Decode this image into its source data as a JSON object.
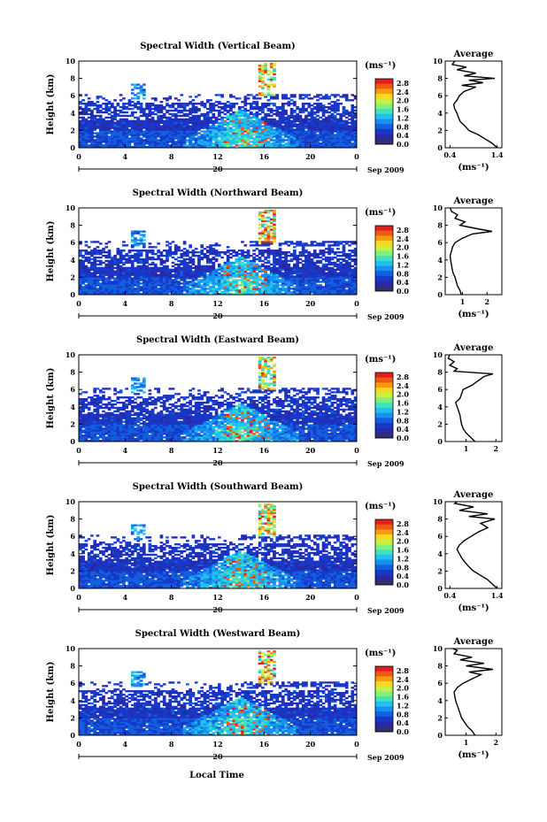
{
  "figure": {
    "xlabel": "Local Time",
    "date_label": "20",
    "month_label": "Sep 2009",
    "ylabel": "Height (km)",
    "unit_label": "(ms⁻¹)"
  },
  "colorbar": {
    "ticks": [
      "2.8",
      "2.4",
      "2.0",
      "1.6",
      "1.2",
      "0.8",
      "0.4",
      "0.0"
    ],
    "colors": [
      "#e02020",
      "#f05a10",
      "#f89a10",
      "#f8d820",
      "#c8f040",
      "#80f080",
      "#40e0c0",
      "#20c0f0",
      "#1890f0",
      "#1060e0",
      "#1838c8",
      "#2828a8",
      "#303070"
    ]
  },
  "chart_data": [
    {
      "type": "heatmap",
      "title": "Spectral Width (Vertical Beam)",
      "xlabel": "Local Time",
      "ylabel": "Height (km)",
      "x_ticks": [
        "0",
        "4",
        "8",
        "12",
        "16",
        "20",
        "0"
      ],
      "y_ticks": [
        "10",
        "8",
        "6",
        "4",
        "2",
        "0"
      ],
      "xlim": [
        0,
        24
      ],
      "ylim": [
        0,
        10
      ],
      "color_scale": [
        0,
        3.0
      ],
      "colorbar_unit": "(ms⁻¹)",
      "average": {
        "title": "Average",
        "xlabel": "(ms⁻¹)",
        "xlim": [
          0.3,
          1.5
        ],
        "x_ticks": [
          "0.4",
          "1.4"
        ],
        "y_ticks": [
          "10",
          "8",
          "6",
          "4",
          "2",
          "0"
        ],
        "profile": [
          [
            0.0,
            1.4
          ],
          [
            0.5,
            1.3
          ],
          [
            1.0,
            1.15
          ],
          [
            1.5,
            1.0
          ],
          [
            2.0,
            0.8
          ],
          [
            2.5,
            0.72
          ],
          [
            3.0,
            0.62
          ],
          [
            3.5,
            0.58
          ],
          [
            4.0,
            0.55
          ],
          [
            4.5,
            0.5
          ],
          [
            5.0,
            0.48
          ],
          [
            5.5,
            0.55
          ],
          [
            6.0,
            0.6
          ],
          [
            6.5,
            0.7
          ],
          [
            7.0,
            0.95
          ],
          [
            7.2,
            0.65
          ],
          [
            7.5,
            1.1
          ],
          [
            7.8,
            0.8
          ],
          [
            8.0,
            1.35
          ],
          [
            8.3,
            0.7
          ],
          [
            8.6,
            0.95
          ],
          [
            9.0,
            0.55
          ],
          [
            9.3,
            0.75
          ],
          [
            9.6,
            0.45
          ],
          [
            10.0,
            0.5
          ]
        ]
      }
    },
    {
      "type": "heatmap",
      "title": "Spectral Width (Northward Beam)",
      "xlabel": "Local Time",
      "ylabel": "Height (km)",
      "x_ticks": [
        "0",
        "4",
        "8",
        "12",
        "16",
        "20",
        "0"
      ],
      "y_ticks": [
        "10",
        "8",
        "6",
        "4",
        "2",
        "0"
      ],
      "xlim": [
        0,
        24
      ],
      "ylim": [
        0,
        10
      ],
      "color_scale": [
        0,
        3.0
      ],
      "colorbar_unit": "(ms⁻¹)",
      "average": {
        "title": "Average",
        "xlabel": "(ms⁻¹)",
        "xlim": [
          0.3,
          2.6
        ],
        "x_ticks": [
          "1",
          "2"
        ],
        "y_ticks": [
          "10",
          "8",
          "6",
          "4",
          "2",
          "0"
        ],
        "profile": [
          [
            0.0,
            0.95
          ],
          [
            0.5,
            0.9
          ],
          [
            1.0,
            0.8
          ],
          [
            1.5,
            0.75
          ],
          [
            2.0,
            0.7
          ],
          [
            2.5,
            0.62
          ],
          [
            3.0,
            0.58
          ],
          [
            3.5,
            0.55
          ],
          [
            4.0,
            0.52
          ],
          [
            4.5,
            0.5
          ],
          [
            5.0,
            0.55
          ],
          [
            5.5,
            0.6
          ],
          [
            6.0,
            0.7
          ],
          [
            6.5,
            1.0
          ],
          [
            7.0,
            1.4
          ],
          [
            7.3,
            2.2
          ],
          [
            7.6,
            1.6
          ],
          [
            8.0,
            0.9
          ],
          [
            8.4,
            1.1
          ],
          [
            8.8,
            0.7
          ],
          [
            9.2,
            0.8
          ],
          [
            9.6,
            0.55
          ],
          [
            10.0,
            0.5
          ]
        ]
      }
    },
    {
      "type": "heatmap",
      "title": "Spectral Width (Eastward Beam)",
      "xlabel": "Local Time",
      "ylabel": "Height (km)",
      "x_ticks": [
        "0",
        "4",
        "8",
        "12",
        "16",
        "20",
        "0"
      ],
      "y_ticks": [
        "10",
        "8",
        "6",
        "4",
        "2",
        "0"
      ],
      "xlim": [
        0,
        24
      ],
      "ylim": [
        0,
        10
      ],
      "color_scale": [
        0,
        3.0
      ],
      "colorbar_unit": "(ms⁻¹)",
      "average": {
        "title": "Average",
        "xlabel": "",
        "xlim": [
          0.3,
          2.2
        ],
        "x_ticks": [
          "1",
          "2"
        ],
        "y_ticks": [
          "10",
          "8",
          "6",
          "4",
          "2",
          "0"
        ],
        "profile": [
          [
            0.0,
            1.3
          ],
          [
            0.5,
            1.15
          ],
          [
            1.0,
            1.0
          ],
          [
            1.5,
            0.9
          ],
          [
            2.0,
            0.85
          ],
          [
            2.5,
            0.82
          ],
          [
            3.0,
            0.8
          ],
          [
            3.5,
            0.75
          ],
          [
            4.0,
            0.7
          ],
          [
            4.5,
            0.65
          ],
          [
            5.0,
            0.8
          ],
          [
            5.5,
            0.85
          ],
          [
            6.0,
            0.9
          ],
          [
            6.5,
            1.2
          ],
          [
            7.0,
            1.4
          ],
          [
            7.5,
            1.6
          ],
          [
            7.8,
            1.9
          ],
          [
            8.1,
            0.6
          ],
          [
            8.4,
            0.7
          ],
          [
            8.8,
            0.45
          ],
          [
            9.2,
            0.6
          ],
          [
            9.6,
            0.4
          ],
          [
            10.0,
            0.45
          ]
        ]
      }
    },
    {
      "type": "heatmap",
      "title": "Spectral Width (Southward Beam)",
      "xlabel": "Local Time",
      "ylabel": "Height (km)",
      "x_ticks": [
        "0",
        "4",
        "8",
        "12",
        "16",
        "20",
        "0"
      ],
      "y_ticks": [
        "10",
        "8",
        "6",
        "4",
        "2",
        "0"
      ],
      "xlim": [
        0,
        24
      ],
      "ylim": [
        0,
        10
      ],
      "color_scale": [
        0,
        3.0
      ],
      "colorbar_unit": "(ms⁻¹)",
      "average": {
        "title": "Average",
        "xlabel": "(ms⁻¹)",
        "xlim": [
          0.3,
          1.5
        ],
        "x_ticks": [
          "0.4",
          "1.4"
        ],
        "y_ticks": [
          "10",
          "8",
          "6",
          "4",
          "2",
          "0"
        ],
        "profile": [
          [
            0.0,
            1.4
          ],
          [
            0.5,
            1.3
          ],
          [
            1.0,
            1.2
          ],
          [
            1.5,
            1.05
          ],
          [
            2.0,
            0.9
          ],
          [
            2.5,
            0.8
          ],
          [
            3.0,
            0.72
          ],
          [
            3.5,
            0.65
          ],
          [
            4.0,
            0.6
          ],
          [
            4.5,
            0.55
          ],
          [
            5.0,
            0.6
          ],
          [
            5.5,
            0.7
          ],
          [
            6.0,
            0.85
          ],
          [
            6.5,
            1.0
          ],
          [
            7.0,
            1.2
          ],
          [
            7.5,
            1.05
          ],
          [
            8.0,
            1.35
          ],
          [
            8.3,
            0.8
          ],
          [
            8.6,
            1.2
          ],
          [
            9.0,
            0.6
          ],
          [
            9.4,
            0.9
          ],
          [
            9.8,
            0.5
          ],
          [
            10.0,
            0.55
          ]
        ]
      }
    },
    {
      "type": "heatmap",
      "title": "Spectral Width (Westward Beam)",
      "xlabel": "Local Time",
      "ylabel": "Height (km)",
      "x_ticks": [
        "0",
        "4",
        "8",
        "12",
        "16",
        "20",
        "0"
      ],
      "y_ticks": [
        "10",
        "8",
        "6",
        "4",
        "2",
        "0"
      ],
      "xlim": [
        0,
        24
      ],
      "ylim": [
        0,
        10
      ],
      "color_scale": [
        0,
        3.0
      ],
      "colorbar_unit": "(ms⁻¹)",
      "average": {
        "title": "Average",
        "xlabel": "(ms⁻¹)",
        "xlim": [
          0.3,
          2.2
        ],
        "x_ticks": [
          "1",
          "2"
        ],
        "y_ticks": [
          "10",
          "8",
          "6",
          "4",
          "2",
          "0"
        ],
        "profile": [
          [
            0.0,
            1.3
          ],
          [
            0.5,
            1.2
          ],
          [
            1.0,
            1.05
          ],
          [
            1.5,
            0.95
          ],
          [
            2.0,
            0.85
          ],
          [
            2.5,
            0.8
          ],
          [
            3.0,
            0.75
          ],
          [
            3.5,
            0.7
          ],
          [
            4.0,
            0.65
          ],
          [
            4.5,
            0.62
          ],
          [
            5.0,
            0.6
          ],
          [
            5.5,
            0.7
          ],
          [
            6.0,
            0.9
          ],
          [
            6.5,
            1.2
          ],
          [
            7.0,
            1.5
          ],
          [
            7.3,
            1.1
          ],
          [
            7.6,
            1.9
          ],
          [
            8.0,
            1.0
          ],
          [
            8.3,
            1.6
          ],
          [
            8.7,
            0.8
          ],
          [
            9.0,
            1.2
          ],
          [
            9.4,
            0.6
          ],
          [
            9.8,
            0.7
          ],
          [
            10.0,
            0.55
          ]
        ]
      }
    }
  ]
}
